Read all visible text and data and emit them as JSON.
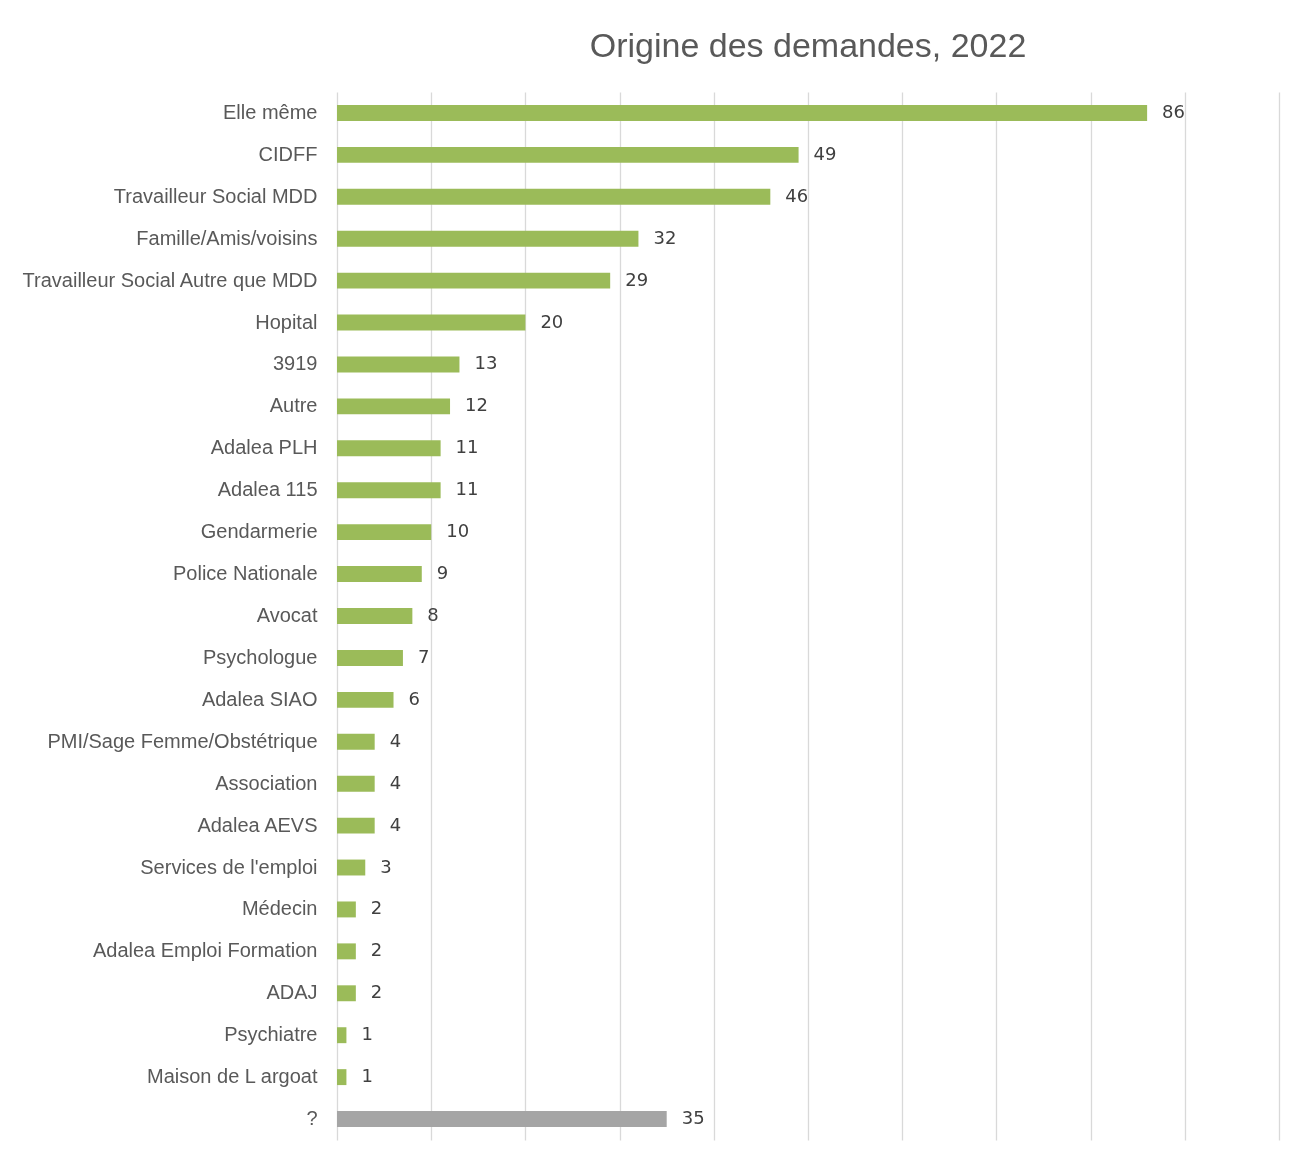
{
  "chart_data": {
    "type": "bar",
    "orientation": "horizontal",
    "title": "Origine des demandes, 2022",
    "categories": [
      "Elle même",
      "CIDFF",
      "Travailleur Social MDD",
      "Famille/Amis/voisins",
      "Travailleur Social Autre que MDD",
      "Hopital",
      "3919",
      "Autre",
      "Adalea PLH",
      "Adalea 115",
      "Gendarmerie",
      "Police Nationale",
      "Avocat",
      "Psychologue",
      "Adalea SIAO",
      "PMI/Sage Femme/Obstétrique",
      "Association",
      "Adalea AEVS",
      "Services de l'emploi",
      "Médecin",
      "Adalea Emploi Formation",
      "ADAJ",
      "Psychiatre",
      "Maison de L argoat",
      "?"
    ],
    "values": [
      86,
      49,
      46,
      32,
      29,
      20,
      13,
      12,
      11,
      11,
      10,
      9,
      8,
      7,
      6,
      4,
      4,
      4,
      3,
      2,
      2,
      2,
      1,
      1,
      35
    ],
    "colors": [
      "#9bbb59",
      "#9bbb59",
      "#9bbb59",
      "#9bbb59",
      "#9bbb59",
      "#9bbb59",
      "#9bbb59",
      "#9bbb59",
      "#9bbb59",
      "#9bbb59",
      "#9bbb59",
      "#9bbb59",
      "#9bbb59",
      "#9bbb59",
      "#9bbb59",
      "#9bbb59",
      "#9bbb59",
      "#9bbb59",
      "#9bbb59",
      "#9bbb59",
      "#9bbb59",
      "#9bbb59",
      "#9bbb59",
      "#9bbb59",
      "#a5a5a5"
    ],
    "xlim": [
      0,
      100
    ],
    "xticks": [
      {
        "value": 0,
        "label": null
      },
      {
        "value": 10,
        "label": null
      },
      {
        "value": 20,
        "label": null
      },
      {
        "value": 30,
        "label": null
      },
      {
        "value": 40,
        "label": null
      },
      {
        "value": 50,
        "label": null
      },
      {
        "value": 60,
        "label": null
      },
      {
        "value": 70,
        "label": null
      },
      {
        "value": 80,
        "label": null
      },
      {
        "value": 90,
        "label": null
      },
      {
        "value": 100,
        "label": null
      }
    ],
    "grid": true,
    "tick_labels": "y",
    "data_labels": true
  }
}
